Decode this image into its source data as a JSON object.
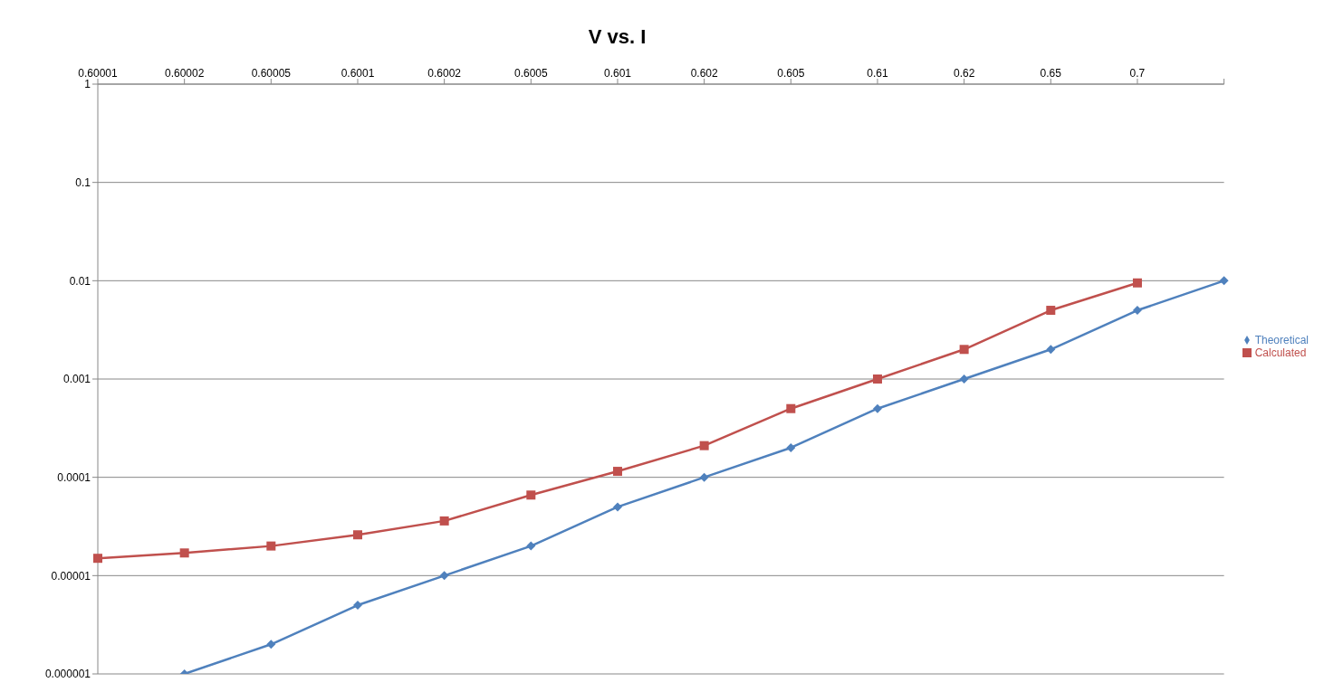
{
  "chart_data": {
    "type": "line",
    "title": "V vs. I",
    "categories": [
      "0.60001",
      "0.60002",
      "0.60005",
      "0.6001",
      "0.6002",
      "0.6005",
      "0.601",
      "0.602",
      "0.605",
      "0.61",
      "0.62",
      "0.65",
      "0.7",
      null
    ],
    "series": [
      {
        "name": "Theoretical",
        "color": "#4f81bd",
        "marker": "diamond",
        "values": [
          null,
          1e-06,
          2e-06,
          5e-06,
          1e-05,
          2e-05,
          5e-05,
          0.0001,
          0.0002,
          0.0005,
          0.001,
          0.002,
          0.005,
          0.01
        ]
      },
      {
        "name": "Calculated",
        "color": "#c0504d",
        "marker": "square",
        "values": [
          1.5e-05,
          1.7e-05,
          2e-05,
          2.6e-05,
          3.6e-05,
          6.6e-05,
          0.000115,
          0.00021,
          0.0005,
          0.001,
          0.002,
          0.005,
          0.0095,
          null
        ]
      }
    ],
    "log": "y",
    "ylim": [
      1e-06,
      1
    ],
    "yticks": [
      {
        "value": 1e-06,
        "label": "0.000001"
      },
      {
        "value": 1e-05,
        "label": "0.00001"
      },
      {
        "value": 0.0001,
        "label": "0.0001"
      },
      {
        "value": 0.001,
        "label": "0.001"
      },
      {
        "value": 0.01,
        "label": "0.01"
      },
      {
        "value": 0.1,
        "label": "0.1"
      },
      {
        "value": 1,
        "label": "1"
      }
    ],
    "grid": "y",
    "legend": "right",
    "line_style": "solid"
  }
}
